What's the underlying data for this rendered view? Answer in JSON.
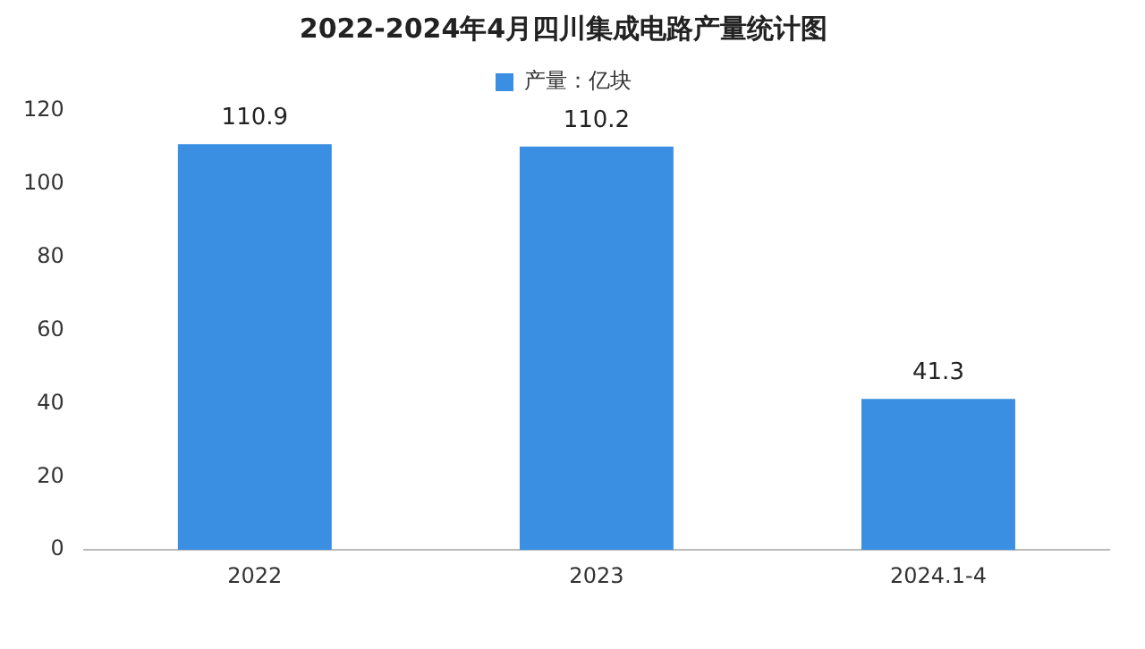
{
  "chart_data": {
    "type": "bar",
    "title": "2022-2024年4月四川集成电路产量统计图",
    "categories": [
      "2022",
      "2023",
      "2024.1-4"
    ],
    "series": [
      {
        "name": "产量：亿块",
        "color": "#3a8fe3",
        "values": [
          110.9,
          110.2,
          41.3
        ]
      }
    ],
    "ylim": [
      0,
      120
    ],
    "yticks": [
      0,
      20,
      40,
      60,
      80,
      100,
      120
    ],
    "grid": false,
    "legend": "top",
    "data_labels": true
  }
}
